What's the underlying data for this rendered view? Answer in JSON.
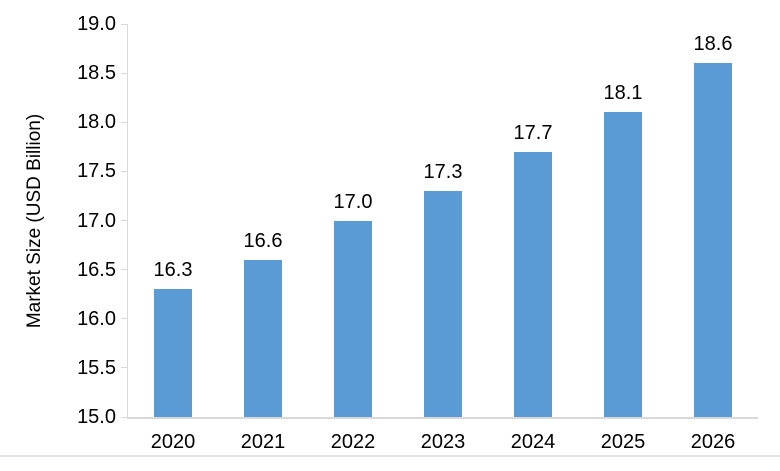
{
  "chart_data": {
    "type": "bar",
    "title": "",
    "xlabel": "",
    "ylabel": "Market Size (USD Billion)",
    "categories": [
      "2020",
      "2021",
      "2022",
      "2023",
      "2024",
      "2025",
      "2026"
    ],
    "values": [
      16.3,
      16.6,
      17.0,
      17.3,
      17.7,
      18.1,
      18.6
    ],
    "value_labels": [
      "16.3",
      "16.6",
      "17.0",
      "17.3",
      "17.7",
      "18.1",
      "18.6"
    ],
    "ylim": [
      15.0,
      19.0
    ],
    "ytick_step": 0.5,
    "ytick_labels": [
      "19.0",
      "18.5",
      "18.0",
      "17.5",
      "17.0",
      "16.5",
      "16.0",
      "15.5",
      "15.0"
    ],
    "grid": "off",
    "legend_position": "none",
    "data_labels": "above-bars",
    "colors": {
      "bar": "#5B9BD5",
      "axis": "#D9D9D9",
      "text": "#000000",
      "background": "#FFFFFF"
    }
  }
}
